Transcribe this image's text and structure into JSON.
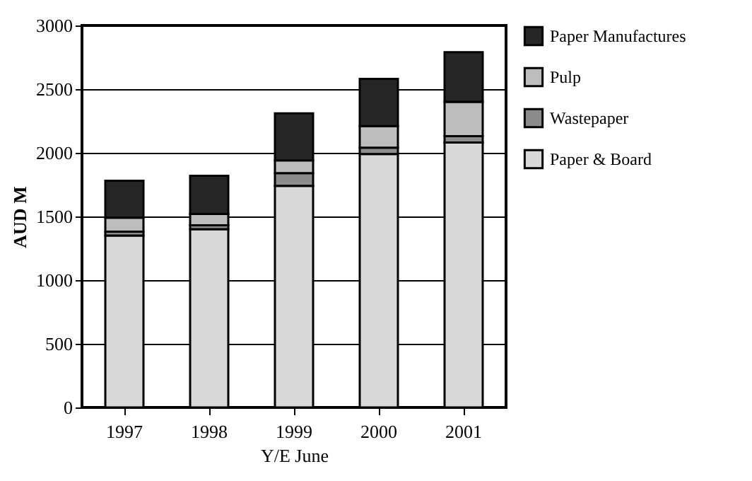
{
  "chart_data": {
    "type": "bar",
    "stacked": true,
    "xlabel": "Y/E June",
    "ylabel": "AUD M",
    "categories": [
      "1997",
      "1998",
      "1999",
      "2000",
      "2001"
    ],
    "series": [
      {
        "name": "Paper & Board",
        "color": "#d9d9d9",
        "values": [
          1350,
          1400,
          1740,
          1990,
          2080
        ]
      },
      {
        "name": "Wastepaper",
        "color": "#8c8c8c",
        "values": [
          30,
          30,
          100,
          50,
          50
        ]
      },
      {
        "name": "Pulp",
        "color": "#bdbdbd",
        "values": [
          110,
          90,
          100,
          170,
          270
        ]
      },
      {
        "name": "Paper Manufactures",
        "color": "#262626",
        "values": [
          290,
          300,
          370,
          370,
          390
        ]
      }
    ],
    "ylim": [
      0,
      3000
    ],
    "yticks": [
      0,
      500,
      1000,
      1500,
      2000,
      2500,
      3000
    ],
    "grid": "y",
    "legend": "top right"
  }
}
